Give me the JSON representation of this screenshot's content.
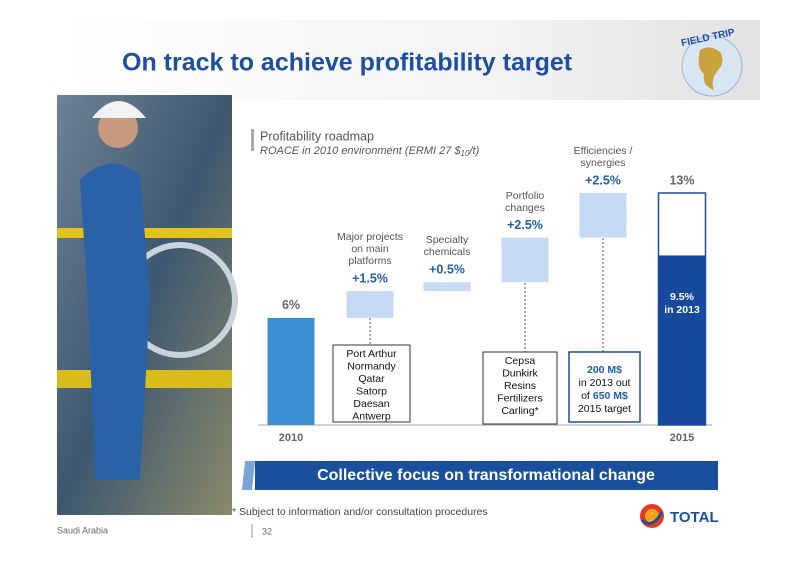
{
  "header": {
    "title": "On track to achieve profitability target",
    "logo_text": "FIELD TRIP"
  },
  "chart_data": {
    "type": "waterfall",
    "title": "Profitability roadmap",
    "subtitle_parts": [
      "ROACE in 2010 environment (ERMI 27 $",
      "10",
      "/t)"
    ],
    "categories": [
      "2010",
      "Major projects on main platforms",
      "Specialty chemicals",
      "Portfolio changes",
      "Efficiencies / synergies",
      "2015"
    ],
    "values": [
      6,
      1.5,
      0.5,
      2.5,
      2.5,
      13
    ],
    "value_labels": [
      "6%",
      "+1.5%",
      "+0.5%",
      "+2.5%",
      "+2.5%",
      "13%"
    ],
    "colors": {
      "start": "#3c8fd2",
      "step": "#c6dbf3",
      "total_border": "#1b4f9e",
      "label": "#1f5fa8"
    },
    "ylim": [
      0,
      13
    ],
    "inner": {
      "value": 9.5,
      "label": "9.5%",
      "note": "in 2013",
      "color": "#174a9c"
    },
    "boxes": {
      "major": [
        "Port Arthur",
        "Normandy",
        "Qatar",
        "Satorp",
        "Daesan",
        "Antwerp"
      ],
      "portfolio": [
        "Cepsa",
        "Dunkirk",
        "Resins",
        "Fertilizers",
        "Carling*"
      ],
      "efficiencies": [
        [
          {
            "text": "200 M$",
            "highlight": true
          }
        ],
        [
          {
            "text": "in 2013 out",
            "highlight": false
          }
        ],
        [
          {
            "text": "of",
            "highlight": false
          },
          {
            "text": "650 M$",
            "highlight": true
          }
        ],
        [
          {
            "text": "2015 target",
            "highlight": false
          }
        ]
      ]
    }
  },
  "banner": "Collective focus on transformational change",
  "footnote": "* Subject to information and/or consultation procedures",
  "footer": {
    "location": "Saudi Arabia",
    "page": 32,
    "brand": "TOTAL"
  }
}
